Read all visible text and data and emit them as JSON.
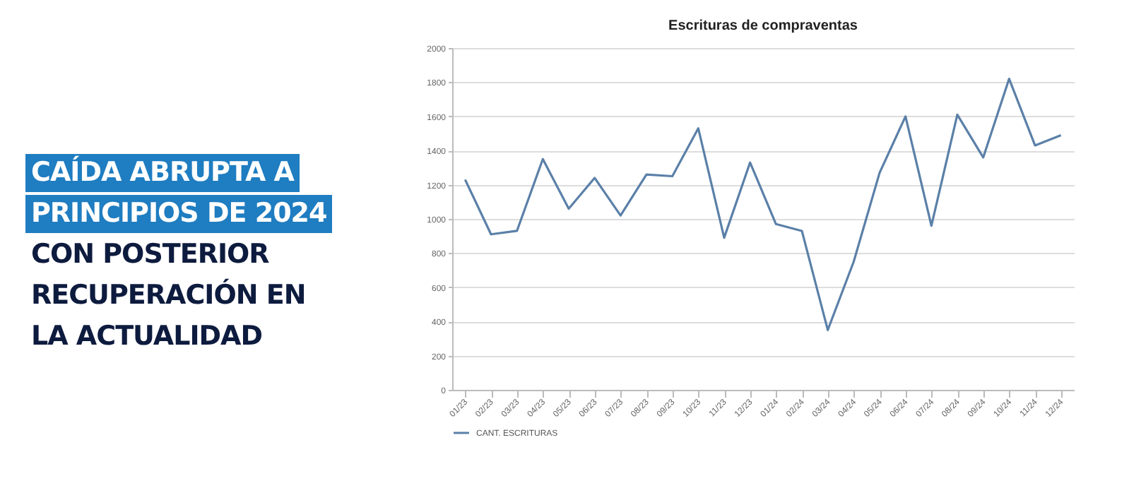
{
  "chart_data": {
    "type": "line",
    "title": "Escrituras de compraventas",
    "annotations": [
      "CAÍDA ABRUPTA A",
      "PRINCIPIOS DE 2024",
      "CON POSTERIOR",
      "RECUPERACIÓN EN",
      "LA ACTUALIDAD"
    ],
    "categories": [
      "01/23",
      "02/23",
      "03/23",
      "04/23",
      "05/23",
      "06/23",
      "07/23",
      "08/23",
      "09/23",
      "10/23",
      "11/23",
      "12/23",
      "01/24",
      "02/24",
      "03/24",
      "04/24",
      "05/24",
      "06/24",
      "07/24",
      "08/24",
      "09/24",
      "10/24",
      "11/24",
      "12/24"
    ],
    "series": [
      {
        "name": "CANT. ESCRITURAS",
        "color": "#5b80a8",
        "values": [
          1230,
          910,
          930,
          1350,
          1060,
          1240,
          1020,
          1260,
          1250,
          1530,
          890,
          1330,
          970,
          930,
          350,
          750,
          1270,
          1600,
          960,
          1610,
          1360,
          1820,
          1430,
          1490
        ]
      }
    ],
    "ylim": [
      0,
      2000
    ],
    "yticks": [
      0,
      200,
      400,
      600,
      800,
      1000,
      1200,
      1400,
      1600,
      1800,
      2000
    ],
    "grid": "y",
    "legend": "bottom",
    "marker": "none",
    "line_style": "solid"
  }
}
